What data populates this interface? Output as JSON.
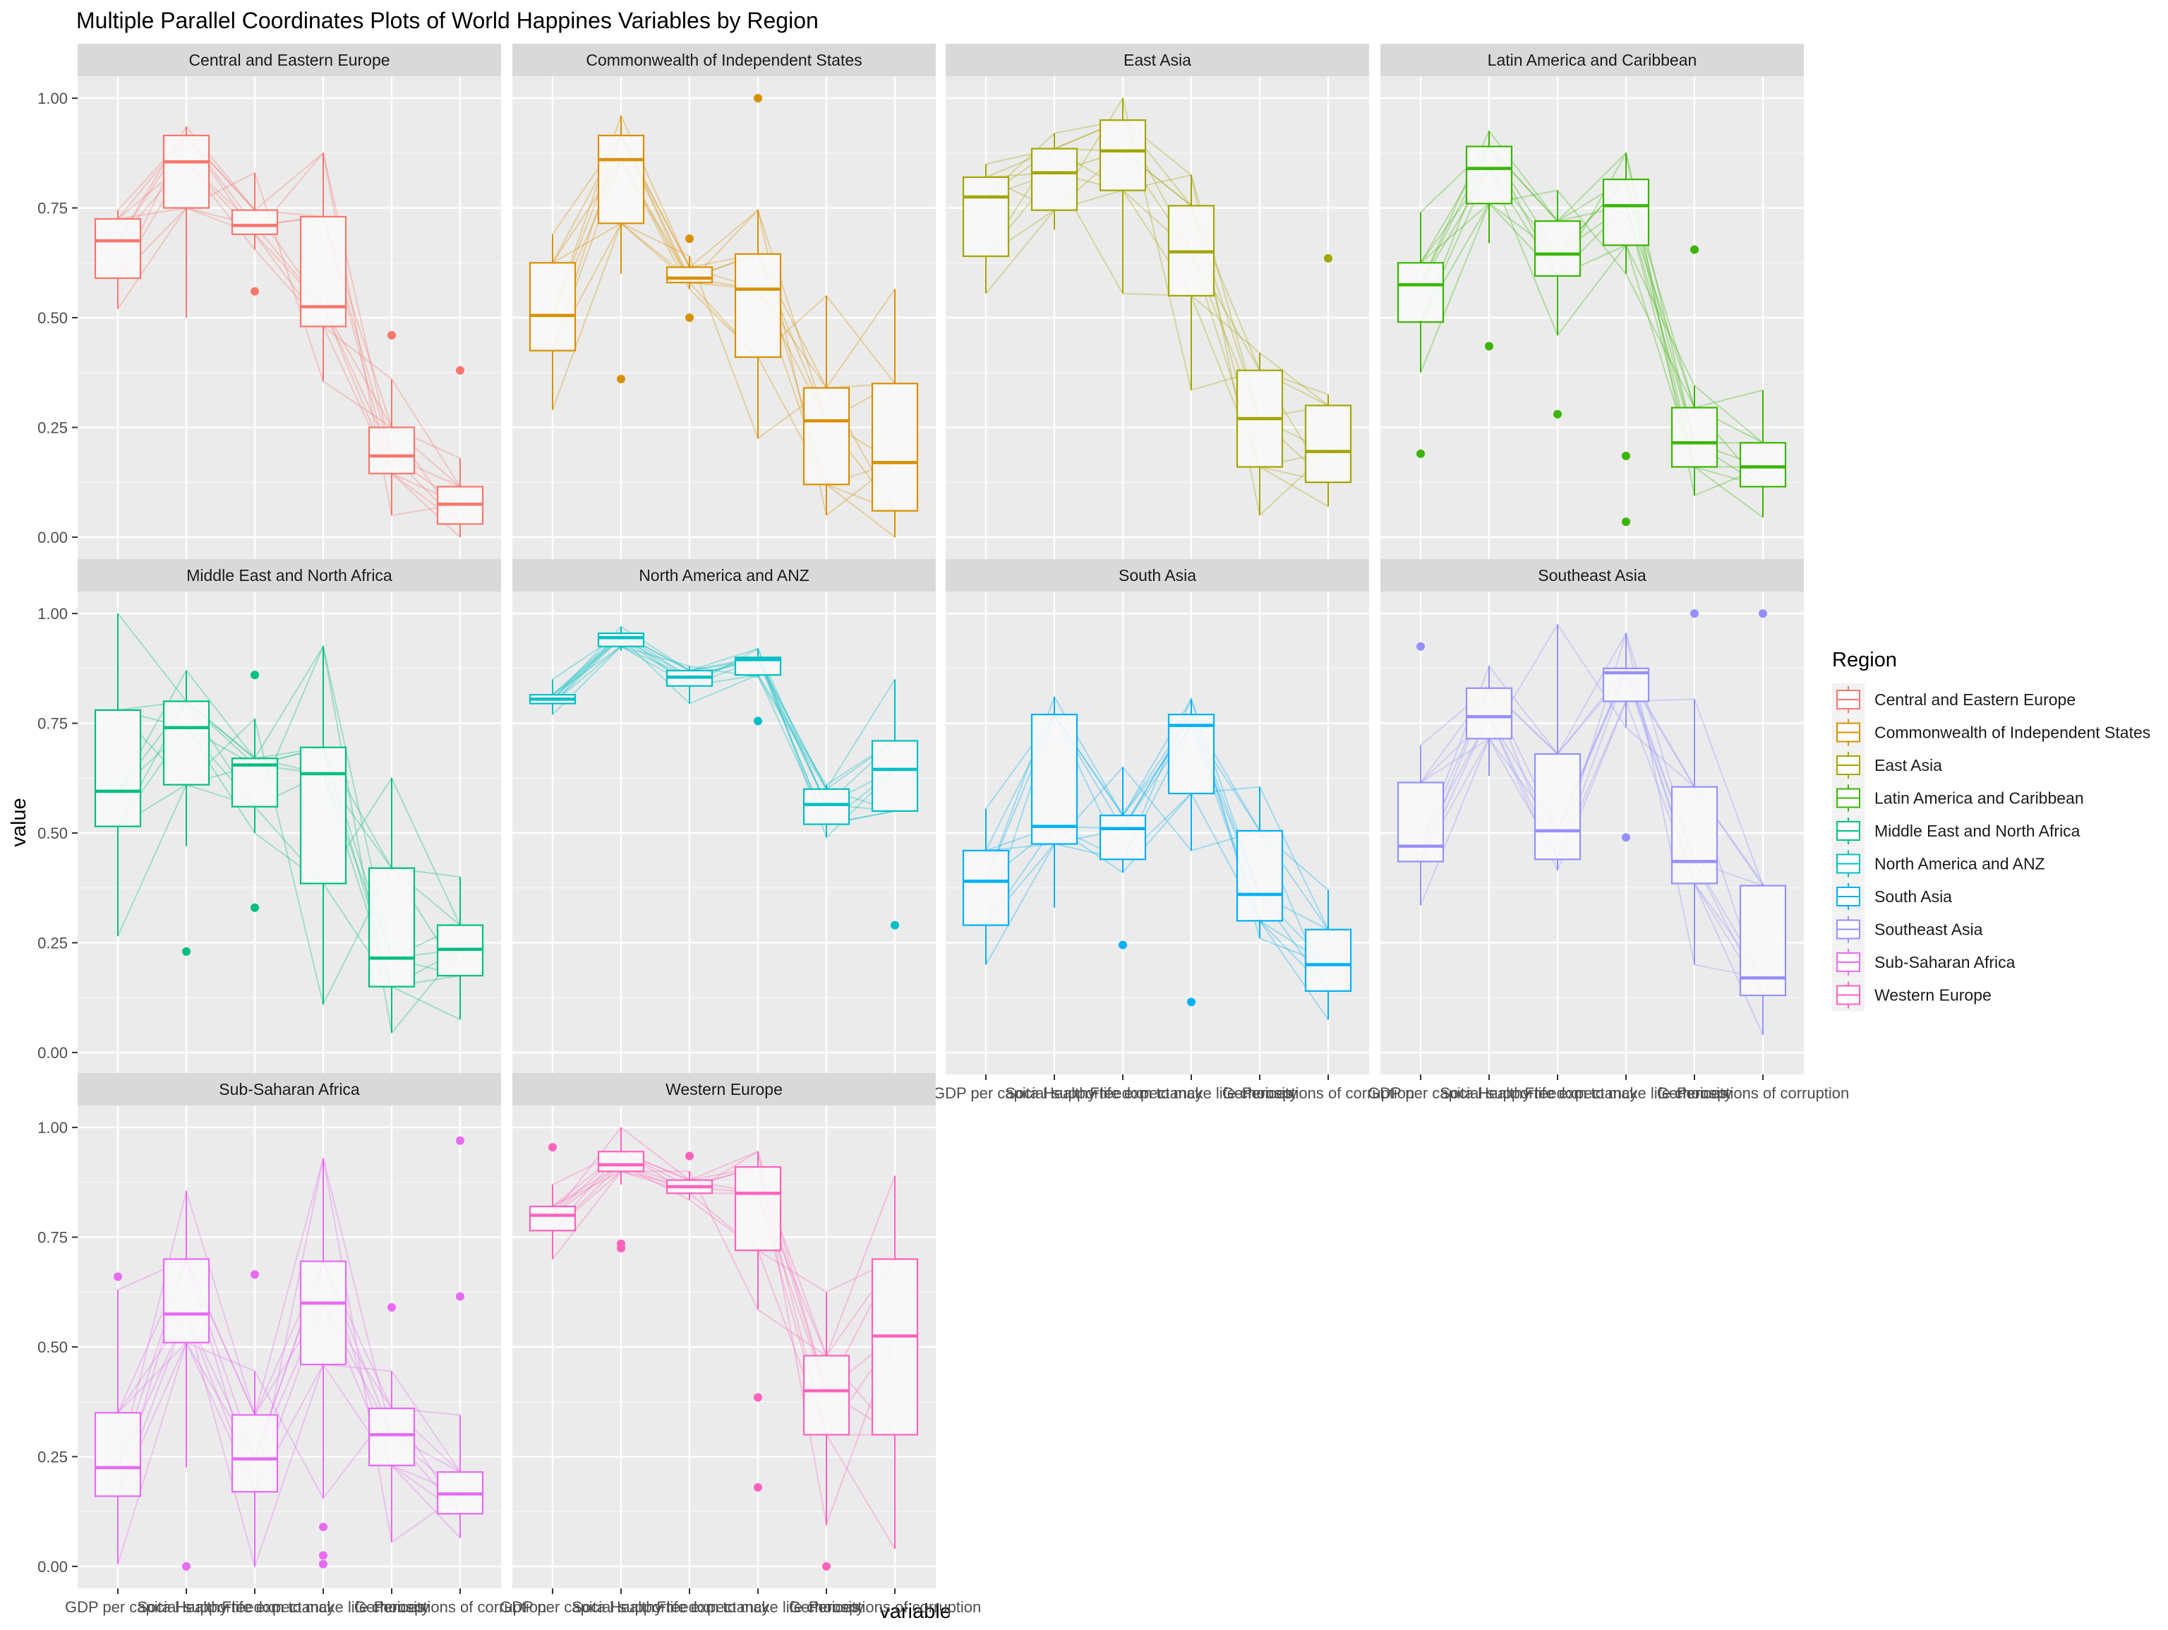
{
  "chart_data": {
    "type": "box",
    "title": "Multiple Parallel Coordinates Plots of World Happines Variables by Region",
    "xlabel": "variable",
    "ylabel": "value",
    "ylim": [
      0,
      1
    ],
    "y_ticks": [
      "0.00",
      "0.25",
      "0.50",
      "0.75",
      "1.00"
    ],
    "grid": true,
    "categories": [
      "GDP per capita",
      "Social support",
      "Healthy life expectancy",
      "Freedom to make life choices",
      "Generosity",
      "Perceptions of corruption"
    ],
    "legend": {
      "title": "Region",
      "position": "right"
    },
    "series": [
      {
        "name": "Central and Eastern Europe",
        "color": "#F8766D",
        "boxes": [
          {
            "min": 0.52,
            "q1": 0.59,
            "median": 0.675,
            "q3": 0.725,
            "max": 0.745,
            "outliers": []
          },
          {
            "min": 0.5,
            "q1": 0.75,
            "median": 0.855,
            "q3": 0.915,
            "max": 0.935,
            "outliers": []
          },
          {
            "min": 0.655,
            "q1": 0.69,
            "median": 0.71,
            "q3": 0.745,
            "max": 0.83,
            "outliers": [
              0.56
            ]
          },
          {
            "min": 0.355,
            "q1": 0.48,
            "median": 0.525,
            "q3": 0.73,
            "max": 0.875,
            "outliers": []
          },
          {
            "min": 0.05,
            "q1": 0.145,
            "median": 0.185,
            "q3": 0.25,
            "max": 0.36,
            "outliers": [
              0.46
            ]
          },
          {
            "min": 0.0,
            "q1": 0.03,
            "median": 0.075,
            "q3": 0.115,
            "max": 0.18,
            "outliers": [
              0.38
            ]
          }
        ]
      },
      {
        "name": "Commonwealth of Independent States",
        "color": "#D89000",
        "boxes": [
          {
            "min": 0.29,
            "q1": 0.425,
            "median": 0.505,
            "q3": 0.625,
            "max": 0.69,
            "outliers": []
          },
          {
            "min": 0.6,
            "q1": 0.715,
            "median": 0.86,
            "q3": 0.915,
            "max": 0.96,
            "outliers": [
              0.36
            ]
          },
          {
            "min": 0.565,
            "q1": 0.58,
            "median": 0.59,
            "q3": 0.615,
            "max": 0.64,
            "outliers": [
              0.68,
              0.5
            ]
          },
          {
            "min": 0.225,
            "q1": 0.41,
            "median": 0.565,
            "q3": 0.645,
            "max": 0.745,
            "outliers": [
              1.0
            ]
          },
          {
            "min": 0.05,
            "q1": 0.12,
            "median": 0.265,
            "q3": 0.34,
            "max": 0.55,
            "outliers": []
          },
          {
            "min": 0.0,
            "q1": 0.06,
            "median": 0.17,
            "q3": 0.35,
            "max": 0.565,
            "outliers": []
          }
        ]
      },
      {
        "name": "East Asia",
        "color": "#A3A500",
        "boxes": [
          {
            "min": 0.555,
            "q1": 0.64,
            "median": 0.775,
            "q3": 0.82,
            "max": 0.85,
            "outliers": []
          },
          {
            "min": 0.7,
            "q1": 0.745,
            "median": 0.83,
            "q3": 0.885,
            "max": 0.92,
            "outliers": []
          },
          {
            "min": 0.555,
            "q1": 0.79,
            "median": 0.88,
            "q3": 0.95,
            "max": 1.0,
            "outliers": []
          },
          {
            "min": 0.335,
            "q1": 0.55,
            "median": 0.65,
            "q3": 0.755,
            "max": 0.825,
            "outliers": []
          },
          {
            "min": 0.05,
            "q1": 0.16,
            "median": 0.27,
            "q3": 0.38,
            "max": 0.42,
            "outliers": []
          },
          {
            "min": 0.07,
            "q1": 0.125,
            "median": 0.195,
            "q3": 0.3,
            "max": 0.325,
            "outliers": [
              0.635
            ]
          }
        ]
      },
      {
        "name": "Latin America and Caribbean",
        "color": "#39B600",
        "boxes": [
          {
            "min": 0.375,
            "q1": 0.49,
            "median": 0.575,
            "q3": 0.625,
            "max": 0.74,
            "outliers": [
              0.19
            ]
          },
          {
            "min": 0.67,
            "q1": 0.76,
            "median": 0.84,
            "q3": 0.89,
            "max": 0.925,
            "outliers": [
              0.435
            ]
          },
          {
            "min": 0.46,
            "q1": 0.595,
            "median": 0.645,
            "q3": 0.72,
            "max": 0.79,
            "outliers": [
              0.28
            ]
          },
          {
            "min": 0.6,
            "q1": 0.665,
            "median": 0.755,
            "q3": 0.815,
            "max": 0.875,
            "outliers": [
              0.185,
              0.035
            ]
          },
          {
            "min": 0.095,
            "q1": 0.16,
            "median": 0.215,
            "q3": 0.295,
            "max": 0.345,
            "outliers": [
              0.655
            ]
          },
          {
            "min": 0.045,
            "q1": 0.115,
            "median": 0.16,
            "q3": 0.215,
            "max": 0.335,
            "outliers": []
          }
        ]
      },
      {
        "name": "Middle East and North Africa",
        "color": "#00BF7D",
        "boxes": [
          {
            "min": 0.265,
            "q1": 0.515,
            "median": 0.595,
            "q3": 0.78,
            "max": 1.0,
            "outliers": []
          },
          {
            "min": 0.47,
            "q1": 0.61,
            "median": 0.74,
            "q3": 0.8,
            "max": 0.87,
            "outliers": [
              0.23
            ]
          },
          {
            "min": 0.5,
            "q1": 0.56,
            "median": 0.655,
            "q3": 0.67,
            "max": 0.76,
            "outliers": [
              0.86,
              0.33
            ]
          },
          {
            "min": 0.11,
            "q1": 0.385,
            "median": 0.635,
            "q3": 0.695,
            "max": 0.925,
            "outliers": []
          },
          {
            "min": 0.045,
            "q1": 0.15,
            "median": 0.215,
            "q3": 0.42,
            "max": 0.625,
            "outliers": []
          },
          {
            "min": 0.075,
            "q1": 0.175,
            "median": 0.235,
            "q3": 0.29,
            "max": 0.4,
            "outliers": []
          }
        ]
      },
      {
        "name": "North America and ANZ",
        "color": "#00BFC4",
        "boxes": [
          {
            "min": 0.77,
            "q1": 0.795,
            "median": 0.805,
            "q3": 0.815,
            "max": 0.85,
            "outliers": []
          },
          {
            "min": 0.915,
            "q1": 0.925,
            "median": 0.945,
            "q3": 0.955,
            "max": 0.97,
            "outliers": []
          },
          {
            "min": 0.795,
            "q1": 0.835,
            "median": 0.855,
            "q3": 0.87,
            "max": 0.88,
            "outliers": []
          },
          {
            "min": 0.855,
            "q1": 0.86,
            "median": 0.895,
            "q3": 0.9,
            "max": 0.92,
            "outliers": [
              0.755
            ]
          },
          {
            "min": 0.49,
            "q1": 0.52,
            "median": 0.565,
            "q3": 0.6,
            "max": 0.61,
            "outliers": []
          },
          {
            "min": 0.55,
            "q1": 0.55,
            "median": 0.645,
            "q3": 0.71,
            "max": 0.85,
            "outliers": [
              0.29
            ]
          }
        ]
      },
      {
        "name": "South Asia",
        "color": "#00B0F6",
        "boxes": [
          {
            "min": 0.2,
            "q1": 0.29,
            "median": 0.39,
            "q3": 0.46,
            "max": 0.555,
            "outliers": []
          },
          {
            "min": 0.33,
            "q1": 0.475,
            "median": 0.515,
            "q3": 0.77,
            "max": 0.81,
            "outliers": []
          },
          {
            "min": 0.41,
            "q1": 0.44,
            "median": 0.51,
            "q3": 0.54,
            "max": 0.65,
            "outliers": [
              0.245
            ]
          },
          {
            "min": 0.46,
            "q1": 0.59,
            "median": 0.745,
            "q3": 0.77,
            "max": 0.805,
            "outliers": [
              0.115
            ]
          },
          {
            "min": 0.26,
            "q1": 0.3,
            "median": 0.36,
            "q3": 0.505,
            "max": 0.605,
            "outliers": []
          },
          {
            "min": 0.075,
            "q1": 0.14,
            "median": 0.2,
            "q3": 0.28,
            "max": 0.37,
            "outliers": []
          }
        ]
      },
      {
        "name": "Southeast Asia",
        "color": "#9590FF",
        "boxes": [
          {
            "min": 0.335,
            "q1": 0.435,
            "median": 0.47,
            "q3": 0.615,
            "max": 0.7,
            "outliers": [
              0.925
            ]
          },
          {
            "min": 0.63,
            "q1": 0.715,
            "median": 0.765,
            "q3": 0.83,
            "max": 0.88,
            "outliers": []
          },
          {
            "min": 0.415,
            "q1": 0.44,
            "median": 0.505,
            "q3": 0.68,
            "max": 0.975,
            "outliers": []
          },
          {
            "min": 0.74,
            "q1": 0.8,
            "median": 0.865,
            "q3": 0.875,
            "max": 0.955,
            "outliers": [
              0.49
            ]
          },
          {
            "min": 0.2,
            "q1": 0.385,
            "median": 0.435,
            "q3": 0.605,
            "max": 0.805,
            "outliers": [
              1.0
            ]
          },
          {
            "min": 0.04,
            "q1": 0.13,
            "median": 0.17,
            "q3": 0.38,
            "max": 0.385,
            "outliers": [
              1.0
            ]
          }
        ]
      },
      {
        "name": "Sub-Saharan Africa",
        "color": "#E76BF3",
        "boxes": [
          {
            "min": 0.005,
            "q1": 0.16,
            "median": 0.225,
            "q3": 0.35,
            "max": 0.63,
            "outliers": [
              0.66
            ]
          },
          {
            "min": 0.225,
            "q1": 0.51,
            "median": 0.575,
            "q3": 0.7,
            "max": 0.855,
            "outliers": [
              0.0
            ]
          },
          {
            "min": 0.0,
            "q1": 0.17,
            "median": 0.245,
            "q3": 0.345,
            "max": 0.445,
            "outliers": [
              0.665
            ]
          },
          {
            "min": 0.155,
            "q1": 0.46,
            "median": 0.6,
            "q3": 0.695,
            "max": 0.93,
            "outliers": [
              0.09,
              0.025,
              0.005
            ]
          },
          {
            "min": 0.055,
            "q1": 0.23,
            "median": 0.3,
            "q3": 0.36,
            "max": 0.445,
            "outliers": [
              0.59
            ]
          },
          {
            "min": 0.065,
            "q1": 0.12,
            "median": 0.165,
            "q3": 0.215,
            "max": 0.345,
            "outliers": [
              0.97,
              0.615
            ]
          }
        ]
      },
      {
        "name": "Western Europe",
        "color": "#FF62BC",
        "boxes": [
          {
            "min": 0.7,
            "q1": 0.765,
            "median": 0.8,
            "q3": 0.82,
            "max": 0.87,
            "outliers": [
              0.955
            ]
          },
          {
            "min": 0.87,
            "q1": 0.9,
            "median": 0.915,
            "q3": 0.945,
            "max": 1.0,
            "outliers": [
              0.735,
              0.725
            ]
          },
          {
            "min": 0.835,
            "q1": 0.85,
            "median": 0.865,
            "q3": 0.88,
            "max": 0.9,
            "outliers": [
              0.935
            ]
          },
          {
            "min": 0.585,
            "q1": 0.72,
            "median": 0.85,
            "q3": 0.91,
            "max": 0.945,
            "outliers": [
              0.385,
              0.18
            ]
          },
          {
            "min": 0.095,
            "q1": 0.3,
            "median": 0.4,
            "q3": 0.48,
            "max": 0.625,
            "outliers": [
              0.0
            ]
          },
          {
            "min": 0.04,
            "q1": 0.3,
            "median": 0.525,
            "q3": 0.7,
            "max": 0.89,
            "outliers": []
          }
        ]
      }
    ]
  }
}
